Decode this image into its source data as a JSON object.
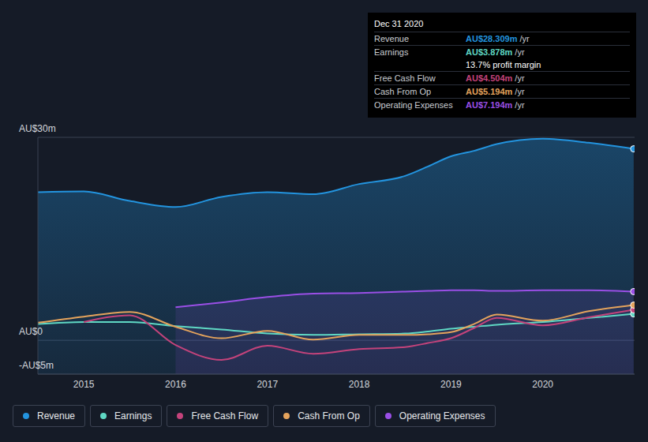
{
  "chart_data": {
    "type": "line",
    "x": [
      2014.5,
      2015,
      2015.5,
      2016,
      2016.5,
      2017,
      2017.5,
      2018,
      2018.5,
      2018.75,
      2019,
      2019.25,
      2019.5,
      2020,
      2020.5,
      2020.99
    ],
    "xlim": [
      2014.5,
      2021
    ],
    "xticks": [
      2015,
      2016,
      2017,
      2018,
      2019,
      2020
    ],
    "ylim": [
      -5,
      30
    ],
    "yticks": [
      {
        "value": -5,
        "label": "-AU$5m"
      },
      {
        "value": 0,
        "label": "AU$0"
      },
      {
        "value": 30,
        "label": "AU$30m"
      }
    ],
    "grid": true,
    "legend": "bottom",
    "series": [
      {
        "name": "Revenue",
        "color": "#2394df",
        "type": "area",
        "values": [
          21.9,
          22.0,
          20.6,
          19.7,
          21.2,
          21.9,
          21.6,
          23.1,
          24.3,
          25.7,
          27.2,
          28.0,
          29.0,
          29.8,
          29.2,
          28.3
        ]
      },
      {
        "name": "Earnings",
        "color": "#5fd8c4",
        "type": "line",
        "values": [
          2.4,
          2.7,
          2.7,
          2.1,
          1.6,
          1.0,
          0.8,
          0.9,
          1.0,
          1.3,
          1.7,
          2.0,
          2.3,
          2.7,
          3.3,
          3.9
        ]
      },
      {
        "name": "Free Cash Flow",
        "color": "#c4437b",
        "type": "line",
        "values": [
          null,
          2.7,
          3.7,
          -0.7,
          -2.9,
          -0.8,
          -2.0,
          -1.3,
          -1.0,
          -0.4,
          0.3,
          1.8,
          3.3,
          2.2,
          3.4,
          4.5
        ]
      },
      {
        "name": "Cash From Op",
        "color": "#e4a35c",
        "type": "line",
        "values": [
          2.6,
          3.5,
          4.2,
          2.0,
          0.3,
          1.4,
          0.1,
          0.8,
          0.8,
          0.9,
          1.2,
          2.4,
          3.8,
          2.9,
          4.3,
          5.2
        ]
      },
      {
        "name": "Operating Expenses",
        "color": "#9a4fe6",
        "type": "area",
        "values": [
          null,
          null,
          null,
          4.9,
          5.6,
          6.4,
          6.9,
          7.0,
          7.2,
          7.3,
          7.4,
          7.4,
          7.3,
          7.4,
          7.4,
          7.2
        ]
      }
    ],
    "tooltip": {
      "title": "Dec 31 2020",
      "rows": [
        {
          "label": "Revenue",
          "value": "AU$28.309m",
          "unit": "/yr"
        },
        {
          "label": "Earnings",
          "value": "AU$3.878m",
          "unit": "/yr"
        },
        {
          "label": "Free Cash Flow",
          "value": "AU$4.504m",
          "unit": "/yr"
        },
        {
          "label": "Cash From Op",
          "value": "AU$5.194m",
          "unit": "/yr"
        },
        {
          "label": "Operating Expenses",
          "value": "AU$7.194m",
          "unit": "/yr"
        }
      ],
      "note": "13.7% profit margin"
    }
  }
}
